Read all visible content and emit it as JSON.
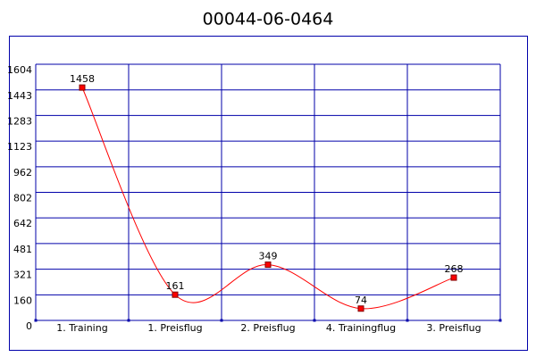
{
  "chart_data": {
    "type": "line",
    "title": "00044-06-0464",
    "categories": [
      "1. Training",
      "1. Preisflug",
      "2. Preisflug",
      "4. Trainingflug",
      "3. Preisflug"
    ],
    "series": [
      {
        "color": "#ff0000",
        "values": [
          1458,
          161,
          349,
          74,
          268
        ]
      }
    ],
    "ylim": [
      0,
      1604
    ],
    "yticks": [
      0,
      160,
      321,
      481,
      642,
      802,
      962,
      1123,
      1283,
      1443,
      1604
    ],
    "grid": true,
    "smooth": true
  }
}
